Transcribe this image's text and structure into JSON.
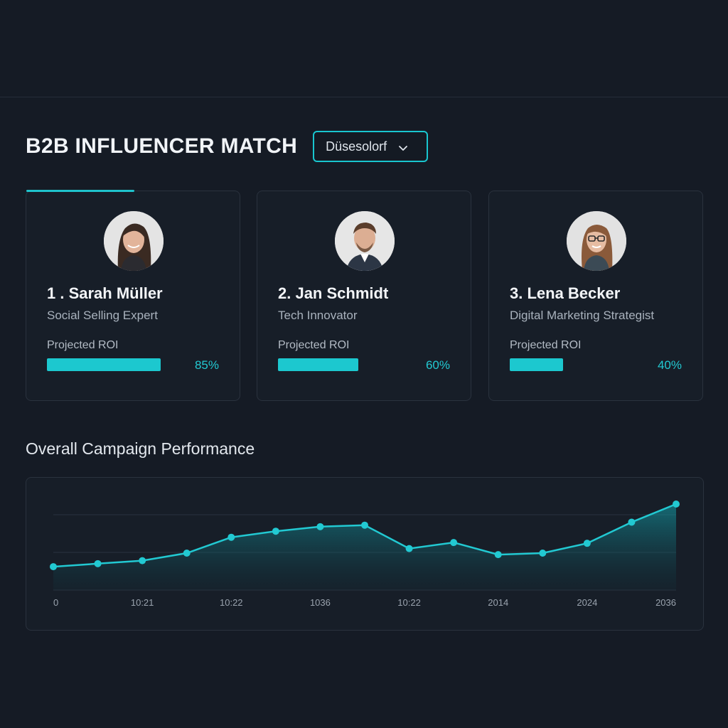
{
  "header": {
    "title": "B2B INFLUENCER MATCH",
    "location_select": {
      "selected": "Düsesolorf",
      "icon": "chevron-down-icon"
    }
  },
  "colors": {
    "accent": "#1cc8cf",
    "background": "#151b25",
    "card": "#171e28"
  },
  "influencers": [
    {
      "rank_name": "1 . Sarah Müller",
      "role": "Social Selling Expert",
      "roi_label": "Projected ROI",
      "roi_value": "85%",
      "roi_fraction": 0.85
    },
    {
      "rank_name": "2. Jan Schmidt",
      "role": "Tech Innovator",
      "roi_label": "Projected ROI",
      "roi_value": "60%",
      "roi_fraction": 0.6
    },
    {
      "rank_name": "3. Lena Becker",
      "role": "Digital Marketing Strategist",
      "roi_label": "Projected ROI",
      "roi_value": "40%",
      "roi_fraction": 0.4
    }
  ],
  "chart": {
    "title": "Overall Campaign Performance"
  },
  "chart_data": {
    "type": "area",
    "x_tick_labels": [
      "0",
      "10:21",
      "10:22",
      "1036",
      "10:22",
      "2014",
      "2024",
      "2036"
    ],
    "series": [
      {
        "values": [
          31,
          35,
          39,
          49,
          70,
          78,
          84,
          86,
          55,
          63,
          47,
          49,
          62,
          90,
          114
        ]
      }
    ],
    "ylim": [
      0,
      130
    ],
    "grid": true,
    "legend": "none"
  }
}
